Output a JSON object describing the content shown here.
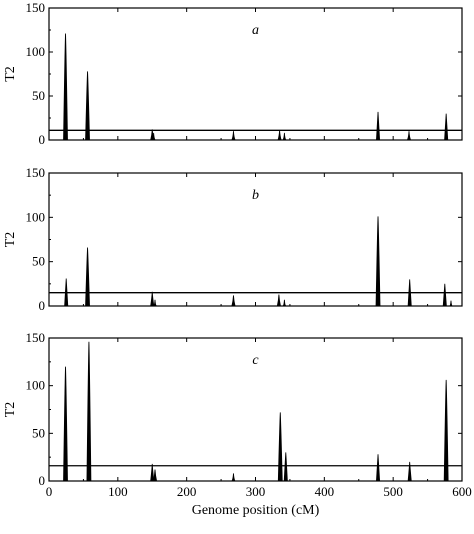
{
  "chart_data": [
    {
      "type": "line",
      "panel_label": "a",
      "ylabel": "T2",
      "xlabel": "",
      "xlim": [
        0,
        600
      ],
      "ylim": [
        0,
        150
      ],
      "yticks": [
        0,
        50,
        100,
        150
      ],
      "xticks": [],
      "threshold": 11,
      "peaks": [
        {
          "x": 24,
          "y": 121
        },
        {
          "x": 56,
          "y": 78
        },
        {
          "x": 150,
          "y": 12
        },
        {
          "x": 152,
          "y": 8
        },
        {
          "x": 268,
          "y": 10
        },
        {
          "x": 335,
          "y": 11
        },
        {
          "x": 342,
          "y": 8
        },
        {
          "x": 478,
          "y": 32
        },
        {
          "x": 523,
          "y": 10
        },
        {
          "x": 577,
          "y": 30
        }
      ]
    },
    {
      "type": "line",
      "panel_label": "b",
      "ylabel": "T2",
      "xlabel": "",
      "xlim": [
        0,
        600
      ],
      "ylim": [
        0,
        150
      ],
      "yticks": [
        0,
        50,
        100,
        150
      ],
      "xticks": [],
      "threshold": 15,
      "peaks": [
        {
          "x": 25,
          "y": 31
        },
        {
          "x": 56,
          "y": 66
        },
        {
          "x": 150,
          "y": 16
        },
        {
          "x": 154,
          "y": 7
        },
        {
          "x": 268,
          "y": 12
        },
        {
          "x": 334,
          "y": 13
        },
        {
          "x": 342,
          "y": 7
        },
        {
          "x": 478,
          "y": 101
        },
        {
          "x": 524,
          "y": 30
        },
        {
          "x": 575,
          "y": 25
        },
        {
          "x": 584,
          "y": 6
        }
      ]
    },
    {
      "type": "line",
      "panel_label": "c",
      "ylabel": "T2",
      "xlabel": "Genome position (cM)",
      "xlim": [
        0,
        600
      ],
      "ylim": [
        0,
        150
      ],
      "yticks": [
        0,
        50,
        100,
        150
      ],
      "xticks": [
        0,
        100,
        200,
        300,
        400,
        500,
        600
      ],
      "threshold": 16,
      "peaks": [
        {
          "x": 24,
          "y": 120
        },
        {
          "x": 58,
          "y": 146
        },
        {
          "x": 150,
          "y": 18
        },
        {
          "x": 154,
          "y": 12
        },
        {
          "x": 268,
          "y": 8
        },
        {
          "x": 336,
          "y": 72
        },
        {
          "x": 344,
          "y": 30
        },
        {
          "x": 478,
          "y": 28
        },
        {
          "x": 524,
          "y": 20
        },
        {
          "x": 577,
          "y": 106
        }
      ]
    }
  ]
}
